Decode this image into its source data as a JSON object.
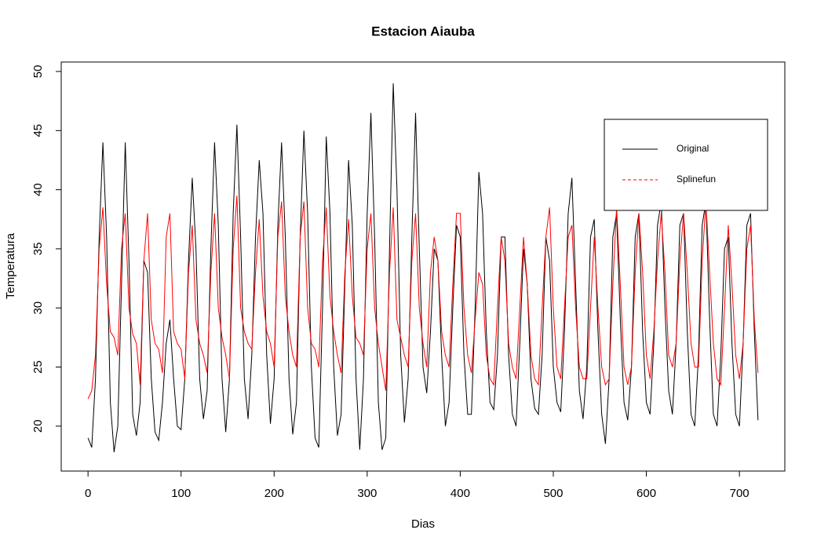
{
  "chart_data": {
    "type": "line",
    "title": "Estacion Aiauba",
    "x_label": "Dias",
    "y_label": "Temperatura",
    "x": [
      0,
      4,
      8,
      12,
      16,
      20,
      24,
      28,
      32,
      36,
      40,
      44,
      48,
      52,
      56,
      60,
      64,
      68,
      72,
      76,
      80,
      84,
      88,
      92,
      96,
      100,
      104,
      108,
      112,
      116,
      120,
      124,
      128,
      132,
      136,
      140,
      144,
      148,
      152,
      156,
      160,
      164,
      168,
      172,
      176,
      180,
      184,
      188,
      192,
      196,
      200,
      204,
      208,
      212,
      216,
      220,
      224,
      228,
      232,
      236,
      240,
      244,
      248,
      252,
      256,
      260,
      264,
      268,
      272,
      276,
      280,
      284,
      288,
      292,
      296,
      300,
      304,
      308,
      312,
      316,
      320,
      324,
      328,
      332,
      336,
      340,
      344,
      348,
      352,
      356,
      360,
      364,
      368,
      372,
      376,
      380,
      384,
      388,
      392,
      396,
      400,
      404,
      408,
      412,
      416,
      420,
      424,
      428,
      432,
      436,
      440,
      444,
      448,
      452,
      456,
      460,
      464,
      468,
      472,
      476,
      480,
      484,
      488,
      492,
      496,
      500,
      504,
      508,
      512,
      516,
      520,
      524,
      528,
      532,
      536,
      540,
      544,
      548,
      552,
      556,
      560,
      564,
      568,
      572,
      576,
      580,
      584,
      588,
      592,
      596,
      600,
      604,
      608,
      612,
      616,
      620,
      624,
      628,
      632,
      636,
      640,
      644,
      648,
      652,
      656,
      660,
      664,
      668,
      672,
      676,
      680,
      684,
      688,
      692,
      696,
      700,
      704,
      708,
      712,
      716,
      720
    ],
    "series": [
      {
        "name": "Original",
        "color": "#000000",
        "legend_line": "solid",
        "values": [
          19,
          18.2,
          24,
          36,
          44,
          36,
          22,
          17.8,
          20,
          32,
          44,
          34,
          21,
          19.2,
          22,
          34,
          33,
          24,
          19.5,
          18.8,
          22,
          27,
          29,
          24,
          20,
          19.7,
          24,
          34,
          41,
          35,
          24,
          20.6,
          23,
          35,
          44,
          37,
          24,
          19.5,
          24,
          38,
          45.5,
          36,
          24,
          20.6,
          26,
          36,
          42.5,
          38,
          26,
          20.2,
          24,
          37,
          44,
          36,
          24,
          19.3,
          22,
          36,
          45,
          38,
          25,
          19,
          18.2,
          30,
          44.5,
          38,
          25,
          19.2,
          21,
          32,
          42.5,
          37,
          24,
          18,
          24,
          38,
          46.5,
          36,
          22,
          18,
          19,
          35,
          49,
          40,
          26,
          20.3,
          24,
          36,
          46.5,
          35,
          25,
          22.8,
          28,
          35,
          34,
          26,
          20,
          22,
          30,
          37,
          36,
          26,
          21,
          21,
          30,
          41.5,
          38,
          28,
          22,
          21.4,
          26,
          36,
          36,
          26,
          21,
          20,
          27,
          35,
          32,
          24,
          21.5,
          21,
          26,
          36,
          34,
          25,
          22,
          21.2,
          28,
          38,
          41,
          32,
          23,
          20.6,
          25,
          36,
          37.5,
          28,
          21,
          18.5,
          24,
          36,
          38,
          29,
          22,
          20.5,
          25,
          36,
          38,
          28,
          22,
          21,
          27,
          37,
          39,
          30,
          23,
          21,
          27,
          37,
          38,
          28,
          21,
          20,
          26,
          37,
          39,
          29,
          21,
          20,
          26,
          35,
          36,
          27,
          21,
          20,
          27,
          37,
          38,
          28,
          20.5
        ]
      },
      {
        "name": "Splinefun",
        "color": "#ff0000",
        "legend_line": "dashed",
        "values": [
          22.3,
          23,
          26,
          35,
          38.5,
          32,
          28,
          27.5,
          26,
          35,
          38,
          30,
          27.8,
          27,
          23.5,
          34,
          38,
          29,
          27,
          26.5,
          24.5,
          36,
          38,
          28,
          27,
          26.5,
          24,
          33,
          37,
          29,
          27,
          26,
          24.5,
          33,
          38,
          30,
          27.5,
          26,
          24,
          35,
          39.5,
          30,
          28,
          27,
          26.5,
          33,
          37.5,
          31,
          28,
          27,
          25,
          36,
          39,
          31,
          28,
          26,
          25,
          36,
          39,
          30,
          27,
          26.5,
          25,
          34,
          38.5,
          31,
          28,
          26,
          24.5,
          33,
          37.5,
          31,
          27.5,
          27,
          26,
          35,
          38,
          30,
          27,
          25,
          23,
          33,
          38.5,
          29,
          27.5,
          26,
          25,
          34,
          38,
          30,
          27,
          25,
          33,
          36,
          34,
          28,
          26,
          25,
          32,
          38,
          38,
          30,
          26,
          24.5,
          29,
          33,
          32,
          26,
          24,
          23.5,
          30,
          36,
          34,
          27,
          25,
          24,
          30,
          36,
          32,
          26,
          24,
          23.5,
          30,
          36,
          38.5,
          30,
          25,
          24,
          30,
          36,
          37,
          30,
          25,
          24,
          24,
          30,
          36,
          30,
          25,
          23.5,
          24,
          32,
          38.5,
          32,
          25,
          23.5,
          25,
          33,
          38,
          33,
          26,
          24,
          28,
          34,
          38,
          33,
          26,
          25,
          27,
          34,
          38,
          33,
          27,
          25,
          25,
          34,
          39,
          33,
          27,
          24,
          23.5,
          30,
          37,
          32,
          26,
          24,
          27,
          35,
          37,
          29,
          24.5
        ]
      }
    ],
    "xlim": [
      -28.8,
      748.8
    ],
    "ylim": [
      16.2,
      50.8
    ],
    "xticks": [
      0,
      100,
      200,
      300,
      400,
      500,
      600,
      700
    ],
    "yticks": [
      20,
      25,
      30,
      35,
      40,
      45,
      50
    ],
    "legend_position": "upper right",
    "grid": false
  }
}
